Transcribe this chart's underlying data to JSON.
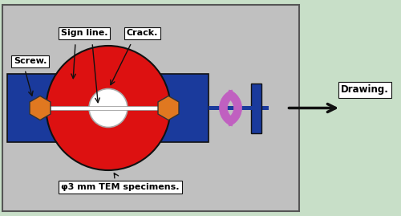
{
  "bg_color": "#c8dfc8",
  "panel_color": "#c0c0c0",
  "panel_border": "#555555",
  "blue": "#1a3a9c",
  "red": "#dd1111",
  "white": "#ffffff",
  "orange": "#e07820",
  "yellow": "#e8d820",
  "purple": "#c060c0",
  "black": "#111111",
  "label_bg": "#ffffff",
  "labels": {
    "sign_line": "Sign line.",
    "crack": "Crack.",
    "screw": "Screw.",
    "specimen": "φ3 mm TEM specimens.",
    "drawing": "Drawing."
  }
}
